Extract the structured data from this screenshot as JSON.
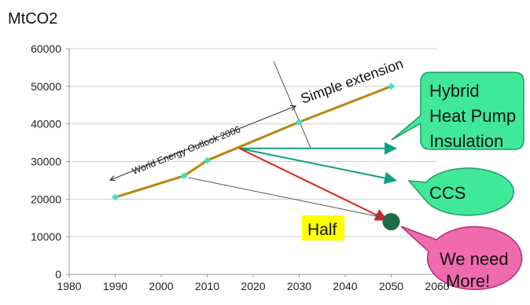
{
  "chart_data": {
    "type": "line",
    "title": "",
    "ylabel": "MtCO2",
    "xlabel": "",
    "xlim": [
      1980,
      2060
    ],
    "ylim": [
      0,
      60000
    ],
    "x_ticks": [
      "1980",
      "1990",
      "2000",
      "2010",
      "2020",
      "2030",
      "2040",
      "2050",
      "2060"
    ],
    "y_ticks": [
      "0",
      "10000",
      "20000",
      "30000",
      "40000",
      "50000",
      "60000"
    ],
    "grid": "horizontal",
    "series": [
      {
        "type": "line",
        "color": "#B8860B",
        "points": [
          {
            "x": 1990,
            "y": 20500
          },
          {
            "x": 2005,
            "y": 26200
          },
          {
            "x": 2010,
            "y": 30300
          },
          {
            "x": 2030,
            "y": 40500
          },
          {
            "x": 2050,
            "y": 50000
          }
        ]
      }
    ],
    "projections": [
      {
        "name": "green-upper",
        "color": "#10A080",
        "from": {
          "x": 2017,
          "y": 33500
        },
        "to": {
          "x": 2051,
          "y": 33500
        }
      },
      {
        "name": "green-lower",
        "color": "#10A080",
        "from": {
          "x": 2017,
          "y": 33500
        },
        "to": {
          "x": 2051,
          "y": 25000
        }
      },
      {
        "name": "red",
        "color": "#E02020",
        "from": {
          "x": 2017,
          "y": 33500
        },
        "to": {
          "x": 2049,
          "y": 14500
        }
      }
    ],
    "target_marker": {
      "x": 2050,
      "y": 14000,
      "color": "#1E6B45"
    },
    "annotations": {
      "simple_extension": "Simple extension",
      "weo": "World Energy Outlook 2006",
      "half": "Half",
      "callout_hybrid": [
        "Hybrid",
        "Heat Pump",
        "Insulation"
      ],
      "callout_ccs": "CCS",
      "callout_need": [
        "We need",
        "More!"
      ]
    },
    "colors": {
      "line": "#B8860B",
      "marker": "#40E0D0",
      "green_arrow": "#10A080",
      "red_arrow": "#E02020",
      "callout_green": "#40E89A",
      "callout_pink": "#F06AAE",
      "half_bg": "#FFFF00",
      "target": "#1E6B45"
    }
  }
}
